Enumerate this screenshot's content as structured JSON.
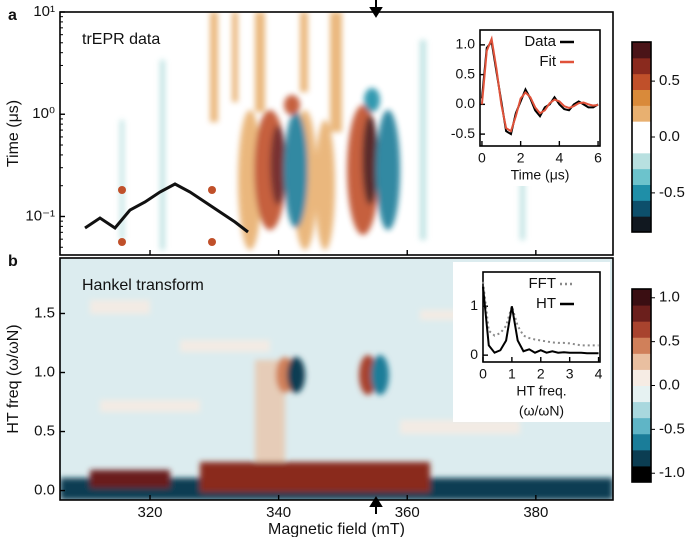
{
  "chart_data": [
    {
      "type": "heatmap",
      "panel_label": "a",
      "title": "trEPR data",
      "ylabel": "Time (μs)",
      "xlim": [
        306,
        392
      ],
      "xticks": [
        320,
        340,
        360,
        380
      ],
      "show_xtick_labels": false,
      "ylim": [
        0.042,
        10
      ],
      "yscale": "log",
      "yticks": [
        {
          "value": 0.1,
          "label": "10⁻¹"
        },
        {
          "value": 1,
          "label": "10⁰"
        },
        {
          "value": 10,
          "label": "10¹"
        }
      ],
      "colorbar": {
        "lim": [
          -0.85,
          0.85
        ],
        "ticks": [
          -0.5,
          {
            "value": 0,
            "label": "0.0"
          },
          0.5
        ],
        "colors": [
          "#111820",
          "#0d4f6b",
          "#1f8fa8",
          "#6cc3cc",
          "#b8e0e0",
          "#ffffff",
          "#ffffff",
          "#e8b070",
          "#d98a3a",
          "#c0502a",
          "#8a2a1e",
          "#4a1418"
        ]
      }
    },
    {
      "type": "heatmap",
      "panel_label": "b",
      "title": "Hankel transform",
      "ylabel": "HT freq (ω/ωN)",
      "xlabel": "Magnetic field (mT)",
      "xlim": [
        306,
        392
      ],
      "xticks": [
        320,
        340,
        360,
        380
      ],
      "show_xtick_labels": true,
      "ylim": [
        -0.08,
        1.97
      ],
      "yticks": [
        {
          "value": 0,
          "label": "0.0"
        },
        0.5,
        {
          "value": 1,
          "label": "1.0"
        },
        1.5
      ],
      "colorbar": {
        "lim": [
          -1.1,
          1.1
        ],
        "ticks": [
          {
            "value": -1,
            "label": "-1.0"
          },
          -0.5,
          {
            "value": 0,
            "label": "0.0"
          },
          0.5,
          {
            "value": 1,
            "label": "1.0"
          }
        ],
        "colors": [
          "#000000",
          "#0b3d52",
          "#1a7d99",
          "#5fb5c6",
          "#a9d8de",
          "#e6f2f2",
          "#f6ece4",
          "#e9bfa0",
          "#d0805a",
          "#a8432e",
          "#6b1f1c",
          "#3a0e12"
        ]
      }
    },
    {
      "type": "line",
      "xlabel": "Time (μs)",
      "xlim": [
        -0.1,
        6.1
      ],
      "xticks": [
        0,
        2,
        4,
        6
      ],
      "ylim": [
        -0.7,
        1.25
      ],
      "yticks": [
        -0.5,
        {
          "value": 0,
          "label": "0.0"
        },
        0.5,
        {
          "value": 1,
          "label": "1.0"
        }
      ],
      "x": [
        0,
        0.25,
        0.5,
        0.75,
        1,
        1.25,
        1.5,
        1.75,
        2,
        2.25,
        2.5,
        2.75,
        3,
        3.25,
        3.5,
        3.75,
        4,
        4.25,
        4.5,
        4.75,
        5,
        5.25,
        5.5,
        5.75,
        6
      ],
      "series": [
        {
          "name": "Data",
          "color": "#000000",
          "values": [
            0.1,
            0.95,
            1.05,
            0.55,
            0.05,
            -0.45,
            -0.5,
            -0.15,
            0.05,
            0.25,
            0.1,
            -0.1,
            -0.2,
            -0.05,
            0,
            0.12,
            0,
            -0.08,
            -0.1,
            0,
            0.05,
            0,
            -0.05,
            -0.05,
            0
          ]
        },
        {
          "name": "Fit",
          "color": "#e0523a",
          "values": [
            0,
            0.9,
            1.1,
            0.6,
            0,
            -0.4,
            -0.45,
            -0.2,
            0.1,
            0.2,
            0.12,
            -0.05,
            -0.15,
            -0.1,
            0.02,
            0.08,
            0.05,
            -0.03,
            -0.06,
            -0.03,
            0.02,
            0.03,
            0,
            -0.02,
            -0.01
          ]
        }
      ]
    },
    {
      "type": "line",
      "xlabel": "HT freq.",
      "xlabel2": "(ω/ωN)",
      "xlim": [
        0,
        4.05
      ],
      "xticks": [
        0,
        1,
        2,
        3,
        4
      ],
      "ylim": [
        -0.14,
        1.7
      ],
      "yticks": [
        0,
        1
      ],
      "x": [
        0,
        0.2,
        0.4,
        0.6,
        0.8,
        1,
        1.2,
        1.4,
        1.6,
        1.8,
        2,
        2.2,
        2.4,
        2.6,
        2.8,
        3,
        3.2,
        3.4,
        3.6,
        3.8,
        4
      ],
      "series": [
        {
          "name": "FFT",
          "color": "#8a8a8a",
          "dashed": true,
          "values": [
            1.5,
            0.5,
            0.4,
            0.45,
            0.6,
            1,
            0.6,
            0.4,
            0.35,
            0.32,
            0.3,
            0.28,
            0.26,
            0.25,
            0.25,
            0.24,
            0.22,
            0.2,
            0.2,
            0.2,
            0.2
          ]
        },
        {
          "name": "HT",
          "color": "#000000",
          "values": [
            1.4,
            0.2,
            0.05,
            0.1,
            0.3,
            1,
            0.3,
            0.08,
            0.12,
            0.05,
            0.1,
            0.05,
            0.08,
            0.05,
            0.06,
            0.05,
            0.05,
            0.05,
            0.04,
            0.04,
            0.04
          ]
        }
      ]
    }
  ]
}
